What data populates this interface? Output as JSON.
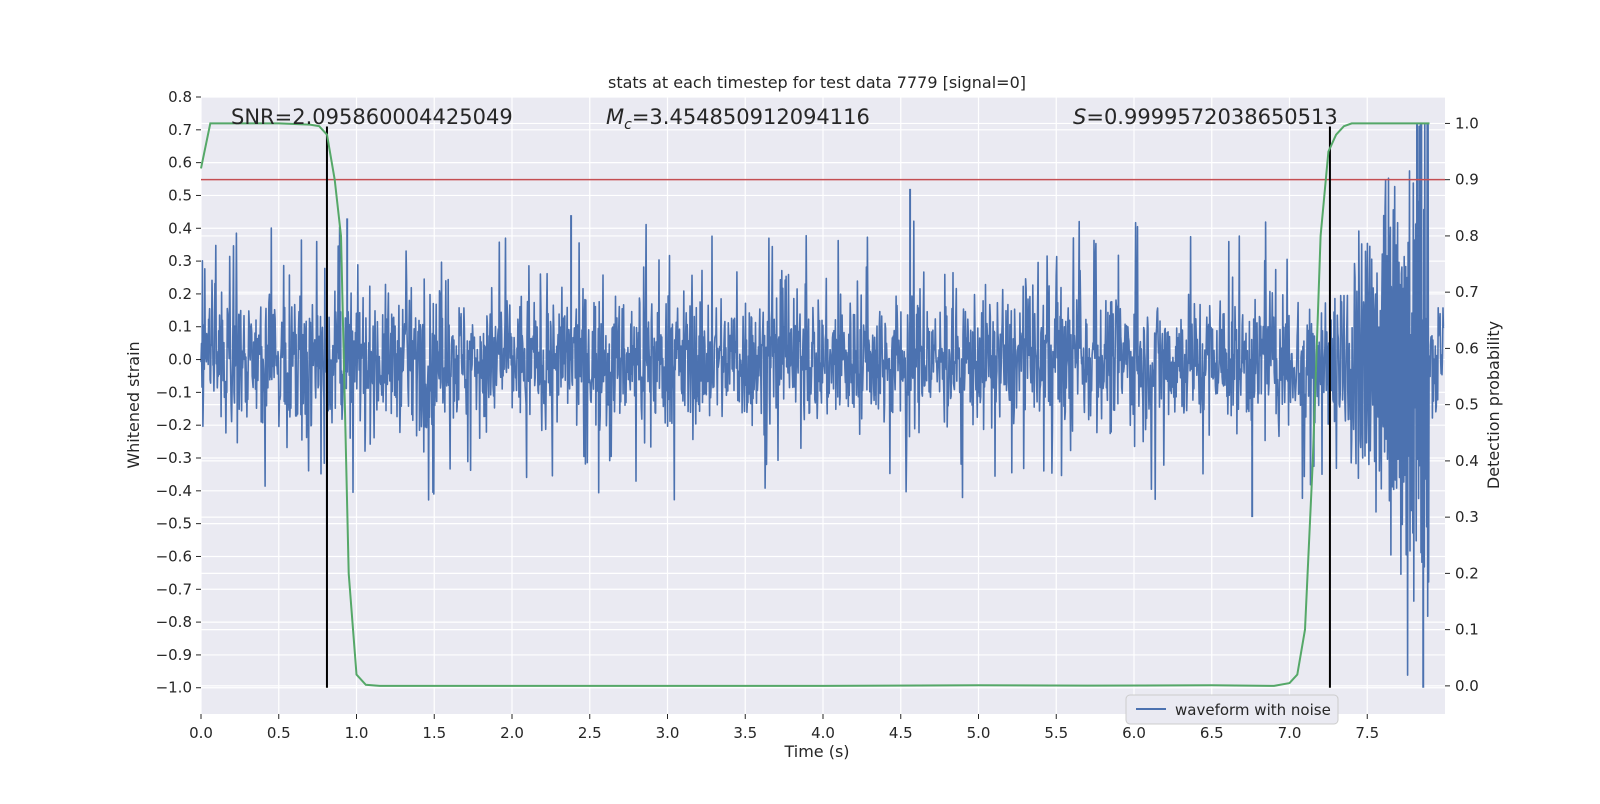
{
  "chart_data": {
    "type": "line",
    "title": "stats at each timestep for test data 7779 [signal=0]",
    "xlabel": "Time (s)",
    "ylabel_left": "Whitened strain",
    "ylabel_right": "Detection probability",
    "xlim": [
      0.0,
      8.0
    ],
    "ylim_left": [
      -1.08,
      0.8
    ],
    "ylim_right": [
      -0.05,
      1.047
    ],
    "x_ticks": [
      0.0,
      0.5,
      1.0,
      1.5,
      2.0,
      2.5,
      3.0,
      3.5,
      4.0,
      4.5,
      5.0,
      5.5,
      6.0,
      6.5,
      7.0,
      7.5
    ],
    "x_tick_labels": [
      "0.0",
      "0.5",
      "1.0",
      "1.5",
      "2.0",
      "2.5",
      "3.0",
      "3.5",
      "4.0",
      "4.5",
      "5.0",
      "5.5",
      "6.0",
      "6.5",
      "7.0",
      "7.5"
    ],
    "y_left_ticks": [
      0.8,
      0.7,
      0.6,
      0.5,
      0.4,
      0.3,
      0.2,
      0.1,
      0.0,
      -0.1,
      -0.2,
      -0.3,
      -0.4,
      -0.5,
      -0.6,
      -0.7,
      -0.8,
      -0.9,
      -1.0
    ],
    "y_left_tick_labels": [
      "0.8",
      "0.7",
      "0.6",
      "0.5",
      "0.4",
      "0.3",
      "0.2",
      "0.1",
      "0.0",
      "−0.1",
      "−0.2",
      "−0.3",
      "−0.4",
      "−0.5",
      "−0.6",
      "−0.7",
      "−0.8",
      "−0.9",
      "−1.0"
    ],
    "y_right_ticks": [
      1.0,
      0.9,
      0.8,
      0.7,
      0.6,
      0.5,
      0.4,
      0.3,
      0.2,
      0.1,
      0.0
    ],
    "y_right_tick_labels": [
      "1.0",
      "0.9",
      "0.8",
      "0.7",
      "0.6",
      "0.5",
      "0.4",
      "0.3",
      "0.2",
      "0.1",
      "0.0"
    ],
    "grid": true,
    "annotations": {
      "snr": "SNR=2.095860004425049",
      "mc_symbol": "M",
      "mc_sub": "c",
      "mc_value": "=3.454850912094116",
      "s_symbol": "S",
      "s_value": "=0.9999572038650513"
    },
    "threshold": {
      "axis": "right",
      "value": 0.9,
      "color": "#c44e52"
    },
    "vertical_lines": [
      {
        "x": 0.81,
        "y_from": -1.0,
        "y_to": 0.71,
        "color": "#000000"
      },
      {
        "x": 7.26,
        "y_from": -1.0,
        "y_to": 0.71,
        "color": "#000000"
      }
    ],
    "waveform": {
      "name": "waveform with noise",
      "color": "#4c72b0",
      "noise_typical": 0.18,
      "noise_peak_max": 0.43,
      "notable_spikes": [
        {
          "x": 0.81,
          "y": -0.52
        },
        {
          "x": 0.94,
          "y": 0.43
        },
        {
          "x": 2.38,
          "y": 0.44
        },
        {
          "x": 4.56,
          "y": 0.52
        },
        {
          "x": 6.76,
          "y": -0.48
        },
        {
          "x": 7.82,
          "y": 0.72
        },
        {
          "x": 7.86,
          "y": -1.0
        }
      ],
      "chirp_start_x": 7.1,
      "chirp_end_x": 7.9,
      "chirp_amplitude": 0.72
    },
    "series": [
      {
        "name": "Detection probability",
        "axis": "right",
        "color": "#55a868",
        "x": [
          0.0,
          0.06,
          0.15,
          0.3,
          0.5,
          0.7,
          0.76,
          0.81,
          0.86,
          0.9,
          0.95,
          1.0,
          1.06,
          1.15,
          1.5,
          2.0,
          3.0,
          4.0,
          5.0,
          5.7,
          6.5,
          6.9,
          7.0,
          7.05,
          7.1,
          7.15,
          7.2,
          7.25,
          7.3,
          7.35,
          7.4,
          7.45,
          7.5,
          7.7,
          7.9
        ],
        "values": [
          0.92,
          1.0,
          1.0,
          1.0,
          1.0,
          0.998,
          0.995,
          0.98,
          0.9,
          0.8,
          0.2,
          0.02,
          0.002,
          0.0,
          0.0,
          0.0,
          0.0,
          0.0,
          0.001,
          0.0005,
          0.001,
          0.0,
          0.005,
          0.02,
          0.1,
          0.4,
          0.8,
          0.95,
          0.98,
          0.995,
          1.0,
          1.0,
          1.0,
          1.0,
          1.0
        ]
      }
    ],
    "legend": {
      "label": "waveform with noise",
      "position": "lower-right"
    }
  }
}
